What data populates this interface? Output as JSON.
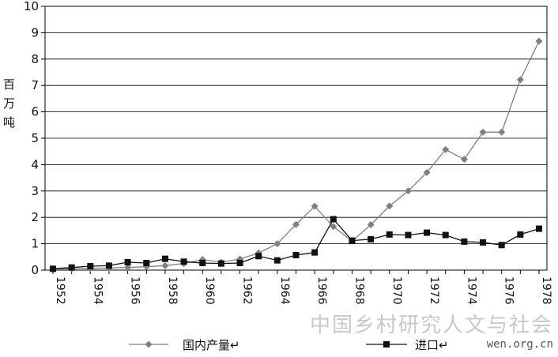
{
  "chart_data": {
    "type": "line",
    "ylabel": "百万吨",
    "ylim": [
      0,
      10
    ],
    "yticks": [
      0,
      1,
      2,
      3,
      4,
      5,
      6,
      7,
      8,
      9,
      10
    ],
    "xlim": [
      1952,
      1978
    ],
    "xticks": [
      "1952",
      "1954",
      "1956",
      "1958",
      "1960",
      "1962",
      "1964",
      "1966",
      "1968",
      "1970",
      "1972",
      "1974",
      "1976",
      "1978"
    ],
    "grid": "horizontal",
    "legend_position": "bottom",
    "series": [
      {
        "name": "国内产量↵",
        "color": "#7f7f7f",
        "marker": "diamond",
        "x": [
          1952,
          1953,
          1954,
          1955,
          1956,
          1957,
          1958,
          1959,
          1960,
          1961,
          1962,
          1963,
          1964,
          1965,
          1966,
          1967,
          1968,
          1969,
          1970,
          1971,
          1972,
          1973,
          1974,
          1975,
          1976,
          1977,
          1978
        ],
        "values": [
          0.05,
          0.05,
          0.07,
          0.08,
          0.1,
          0.13,
          0.17,
          0.25,
          0.4,
          0.3,
          0.42,
          0.65,
          1.0,
          1.73,
          2.42,
          1.65,
          1.1,
          1.72,
          2.43,
          3.0,
          3.7,
          4.57,
          4.2,
          5.23,
          5.23,
          7.22,
          8.68
        ]
      },
      {
        "name": "进口↵",
        "color": "#111111",
        "marker": "square",
        "x": [
          1952,
          1953,
          1954,
          1955,
          1956,
          1957,
          1958,
          1959,
          1960,
          1961,
          1962,
          1963,
          1964,
          1965,
          1966,
          1967,
          1968,
          1969,
          1970,
          1971,
          1972,
          1973,
          1974,
          1975,
          1976,
          1977,
          1978
        ],
        "values": [
          0.05,
          0.1,
          0.15,
          0.17,
          0.3,
          0.27,
          0.43,
          0.32,
          0.27,
          0.25,
          0.27,
          0.53,
          0.37,
          0.57,
          0.67,
          1.93,
          1.12,
          1.17,
          1.35,
          1.33,
          1.42,
          1.33,
          1.08,
          1.05,
          0.95,
          1.35,
          1.57
        ]
      }
    ]
  },
  "watermark": {
    "main": "中国乡村研究人文与社会",
    "url": "wen.org.cn"
  }
}
